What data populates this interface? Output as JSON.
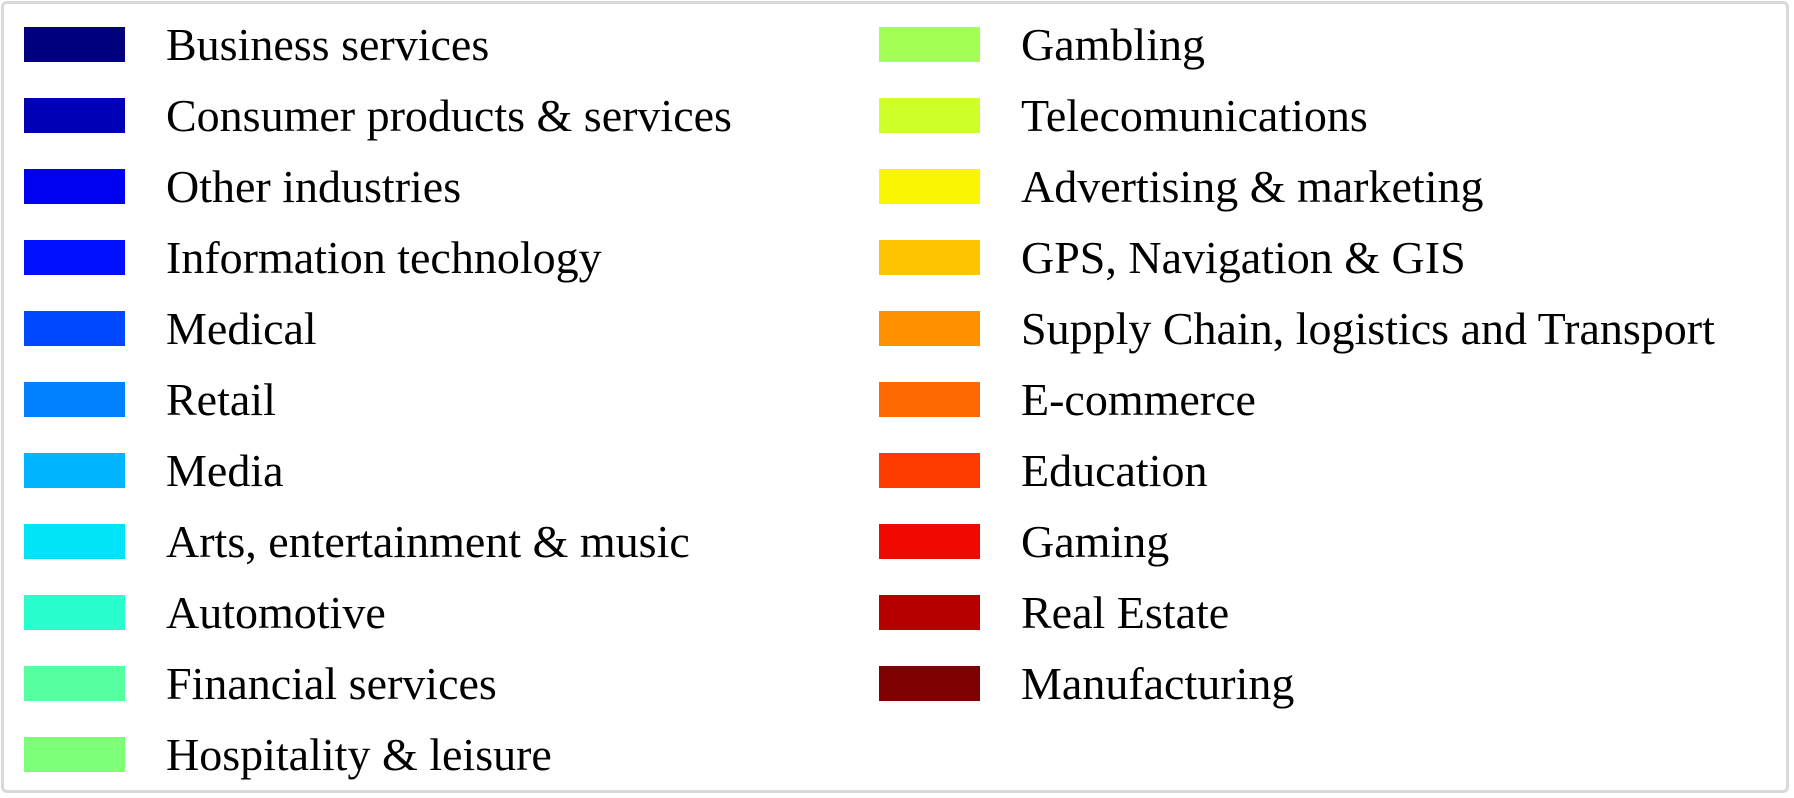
{
  "chart_data": {
    "type": "legend",
    "legend": {
      "columns": [
        [
          {
            "label": "Business services",
            "color": "#00007f"
          },
          {
            "label": "Consumer products & services",
            "color": "#0000b6"
          },
          {
            "label": "Other industries",
            "color": "#0000f1"
          },
          {
            "label": "Information technology",
            "color": "#0010ff"
          },
          {
            "label": "Medical",
            "color": "#0048ff"
          },
          {
            "label": "Retail",
            "color": "#0080ff"
          },
          {
            "label": "Media",
            "color": "#00b4ff"
          },
          {
            "label": "Arts, entertainment & music",
            "color": "#00e4f7"
          },
          {
            "label": "Automotive",
            "color": "#29ffce"
          },
          {
            "label": "Financial services",
            "color": "#56ffa0"
          },
          {
            "label": "Hospitality & leisure",
            "color": "#7dff7a"
          }
        ],
        [
          {
            "label": "Gambling",
            "color": "#a3ff53"
          },
          {
            "label": "Telecomunications",
            "color": "#ceff29"
          },
          {
            "label": "Advertising & marketing",
            "color": "#faf500"
          },
          {
            "label": "GPS, Navigation & GIS",
            "color": "#ffc400"
          },
          {
            "label": "Supply Chain, logistics and Transport",
            "color": "#ff9100"
          },
          {
            "label": "E-commerce",
            "color": "#ff6800"
          },
          {
            "label": "Education",
            "color": "#ff3b00"
          },
          {
            "label": "Gaming",
            "color": "#f10800"
          },
          {
            "label": "Real Estate",
            "color": "#b60000"
          },
          {
            "label": "Manufacturing",
            "color": "#7f0000"
          }
        ]
      ]
    }
  }
}
